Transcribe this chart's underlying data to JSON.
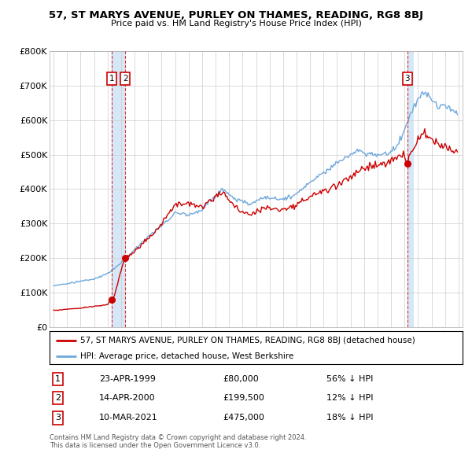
{
  "title": "57, ST MARYS AVENUE, PURLEY ON THAMES, READING, RG8 8BJ",
  "subtitle": "Price paid vs. HM Land Registry's House Price Index (HPI)",
  "legend_line1": "57, ST MARYS AVENUE, PURLEY ON THAMES, READING, RG8 8BJ (detached house)",
  "legend_line2": "HPI: Average price, detached house, West Berkshire",
  "footer1": "Contains HM Land Registry data © Crown copyright and database right 2024.",
  "footer2": "This data is licensed under the Open Government Licence v3.0.",
  "transactions": [
    {
      "num": 1,
      "date_label": "23-APR-1999",
      "year": 1999.3,
      "price": 80000,
      "hpi_pct": "56% ↓ HPI"
    },
    {
      "num": 2,
      "date_label": "14-APR-2000",
      "year": 2000.3,
      "price": 199500,
      "hpi_pct": "12% ↓ HPI"
    },
    {
      "num": 3,
      "date_label": "10-MAR-2021",
      "year": 2021.2,
      "price": 475000,
      "hpi_pct": "18% ↓ HPI"
    }
  ],
  "ylim": [
    0,
    800000
  ],
  "yticks": [
    0,
    100000,
    200000,
    300000,
    400000,
    500000,
    600000,
    700000,
    800000
  ],
  "red_color": "#cc0000",
  "blue_color": "#6fa8dc",
  "shade_color": "#d6e8f7",
  "vline_color": "#cc0000",
  "background_color": "#ffffff"
}
